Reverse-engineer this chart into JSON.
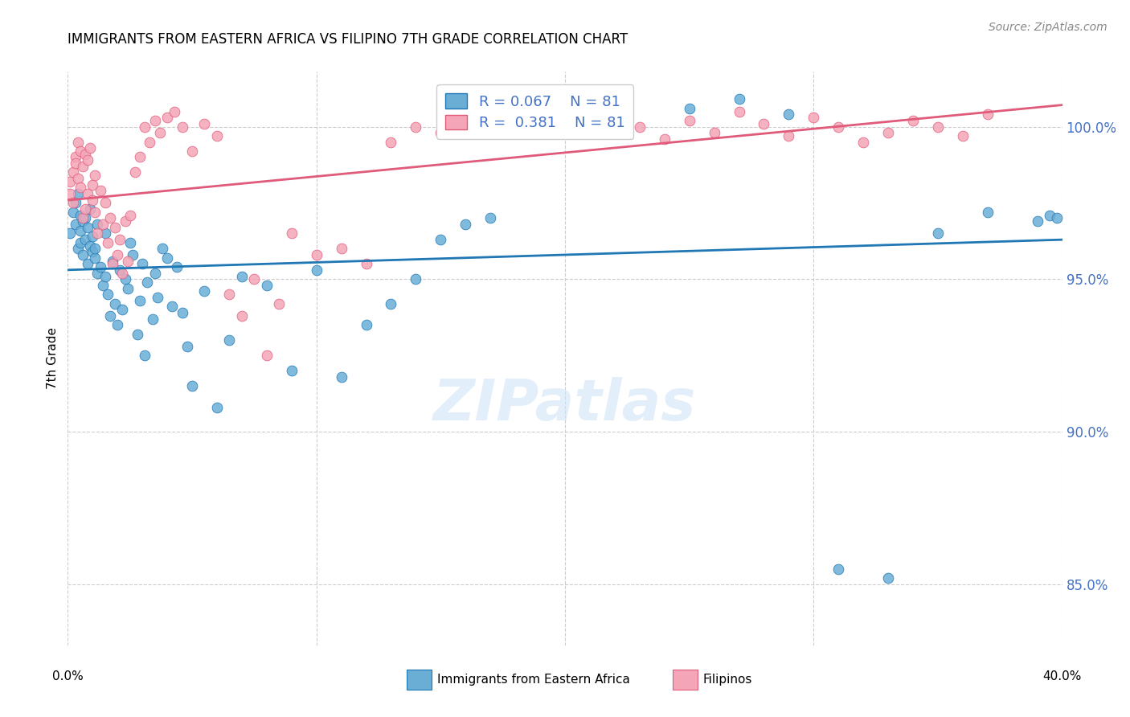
{
  "title": "IMMIGRANTS FROM EASTERN AFRICA VS FILIPINO 7TH GRADE CORRELATION CHART",
  "source": "Source: ZipAtlas.com",
  "ylabel": "7th Grade",
  "yticks": [
    85.0,
    90.0,
    95.0,
    100.0
  ],
  "ytick_labels": [
    "85.0%",
    "90.0%",
    "95.0%",
    "100.0%"
  ],
  "xmin": 0.0,
  "xmax": 0.4,
  "ymin": 83.0,
  "ymax": 101.8,
  "legend1_label": "Immigrants from Eastern Africa",
  "legend2_label": "Filipinos",
  "r1": 0.067,
  "n1": 81,
  "r2": 0.381,
  "n2": 81,
  "blue_color": "#6aaed6",
  "pink_color": "#f4a6b8",
  "trend_blue": "#1f77b4",
  "trend_pink": "#e05a7a",
  "blue_scatter_x": [
    0.001,
    0.002,
    0.003,
    0.003,
    0.004,
    0.004,
    0.005,
    0.005,
    0.005,
    0.006,
    0.006,
    0.007,
    0.007,
    0.008,
    0.008,
    0.009,
    0.009,
    0.01,
    0.01,
    0.011,
    0.011,
    0.012,
    0.012,
    0.013,
    0.014,
    0.015,
    0.015,
    0.016,
    0.017,
    0.018,
    0.019,
    0.02,
    0.021,
    0.022,
    0.023,
    0.024,
    0.025,
    0.026,
    0.028,
    0.029,
    0.03,
    0.031,
    0.032,
    0.034,
    0.035,
    0.036,
    0.038,
    0.04,
    0.042,
    0.044,
    0.046,
    0.048,
    0.05,
    0.055,
    0.06,
    0.065,
    0.07,
    0.08,
    0.09,
    0.1,
    0.11,
    0.12,
    0.13,
    0.14,
    0.15,
    0.16,
    0.17,
    0.19,
    0.2,
    0.21,
    0.22,
    0.25,
    0.27,
    0.29,
    0.31,
    0.33,
    0.35,
    0.37,
    0.39,
    0.395,
    0.398
  ],
  "blue_scatter_y": [
    96.5,
    97.2,
    96.8,
    97.5,
    96.0,
    97.8,
    96.2,
    97.1,
    96.6,
    95.8,
    96.9,
    97.0,
    96.3,
    96.7,
    95.5,
    96.1,
    97.3,
    95.9,
    96.4,
    95.7,
    96.0,
    95.2,
    96.8,
    95.4,
    94.8,
    95.1,
    96.5,
    94.5,
    93.8,
    95.6,
    94.2,
    93.5,
    95.3,
    94.0,
    95.0,
    94.7,
    96.2,
    95.8,
    93.2,
    94.3,
    95.5,
    92.5,
    94.9,
    93.7,
    95.2,
    94.4,
    96.0,
    95.7,
    94.1,
    95.4,
    93.9,
    92.8,
    91.5,
    94.6,
    90.8,
    93.0,
    95.1,
    94.8,
    92.0,
    95.3,
    91.8,
    93.5,
    94.2,
    95.0,
    96.3,
    96.8,
    97.0,
    100.2,
    100.5,
    100.8,
    100.3,
    100.6,
    100.9,
    100.4,
    85.5,
    85.2,
    96.5,
    97.2,
    96.9,
    97.1,
    97.0
  ],
  "pink_scatter_x": [
    0.001,
    0.001,
    0.002,
    0.002,
    0.003,
    0.003,
    0.004,
    0.004,
    0.005,
    0.005,
    0.006,
    0.006,
    0.007,
    0.007,
    0.008,
    0.008,
    0.009,
    0.01,
    0.01,
    0.011,
    0.011,
    0.012,
    0.013,
    0.014,
    0.015,
    0.016,
    0.017,
    0.018,
    0.019,
    0.02,
    0.021,
    0.022,
    0.023,
    0.024,
    0.025,
    0.027,
    0.029,
    0.031,
    0.033,
    0.035,
    0.037,
    0.04,
    0.043,
    0.046,
    0.05,
    0.055,
    0.06,
    0.065,
    0.07,
    0.075,
    0.08,
    0.085,
    0.09,
    0.1,
    0.11,
    0.12,
    0.13,
    0.14,
    0.15,
    0.16,
    0.17,
    0.18,
    0.19,
    0.2,
    0.21,
    0.22,
    0.23,
    0.24,
    0.25,
    0.26,
    0.27,
    0.28,
    0.29,
    0.3,
    0.31,
    0.32,
    0.33,
    0.34,
    0.35,
    0.36,
    0.37
  ],
  "pink_scatter_y": [
    97.8,
    98.2,
    98.5,
    97.5,
    99.0,
    98.8,
    98.3,
    99.5,
    98.0,
    99.2,
    97.0,
    98.7,
    99.1,
    97.3,
    98.9,
    97.8,
    99.3,
    98.1,
    97.6,
    98.4,
    97.2,
    96.5,
    97.9,
    96.8,
    97.5,
    96.2,
    97.0,
    95.5,
    96.7,
    95.8,
    96.3,
    95.2,
    96.9,
    95.6,
    97.1,
    98.5,
    99.0,
    100.0,
    99.5,
    100.2,
    99.8,
    100.3,
    100.5,
    100.0,
    99.2,
    100.1,
    99.7,
    94.5,
    93.8,
    95.0,
    92.5,
    94.2,
    96.5,
    95.8,
    96.0,
    95.5,
    99.5,
    100.0,
    99.8,
    100.2,
    100.5,
    100.0,
    100.3,
    100.1,
    99.9,
    100.4,
    100.0,
    99.6,
    100.2,
    99.8,
    100.5,
    100.1,
    99.7,
    100.3,
    100.0,
    99.5,
    99.8,
    100.2,
    100.0,
    99.7,
    100.4
  ]
}
